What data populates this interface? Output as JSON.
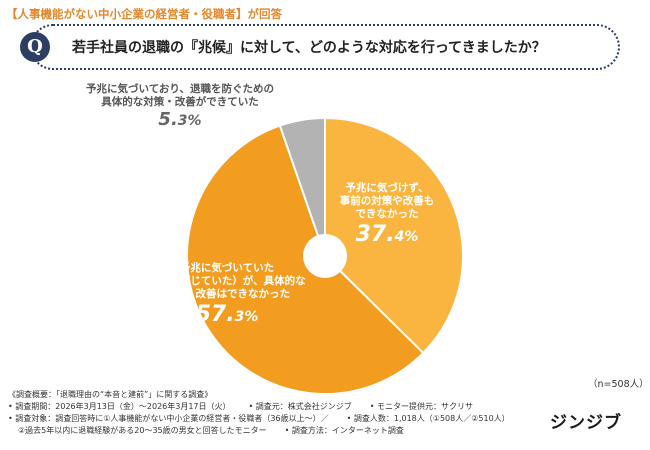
{
  "header": {
    "target_label": "【人事機能がない中小企業の経営者・役職者】が回答",
    "question_badge": "Q",
    "question": "若手社員の退職の『兆候』に対して、どのような対応を行ってきましたか？"
  },
  "chart_data": {
    "type": "pie",
    "title": "若手社員の退職の『兆候』に対して、どのような対応を行ってきましたか？",
    "donut_hole": true,
    "start": "top, clockwise",
    "slices": [
      {
        "label": "予兆に気づけず、事前の対策や改善もできなかった",
        "label_lines": [
          "予兆に気づけず、",
          "事前の対策や改善も",
          "できなかった"
        ],
        "value": 37.4,
        "value_main": "37.",
        "value_small": "4%",
        "color": "#f9b53f"
      },
      {
        "label": "予兆に気づいていた（薄々感じていた）が、具体的な対策・改善はできなかった",
        "label_lines": [
          "予兆に気づいていた",
          "（薄々感じていた）が、具体的な",
          "対策・改善はできなかった"
        ],
        "value": 57.3,
        "value_main": "57.",
        "value_small": "3%",
        "color": "#f29d1f"
      },
      {
        "label": "予兆に気づいており、退職を防ぐための具体的な対策・改善ができていた",
        "label_lines": [
          "予兆に気づいており、退職を防ぐための",
          "具体的な対策・改善ができていた"
        ],
        "value": 5.3,
        "value_main": "5.",
        "value_small": "3%",
        "color": "#b3b3b3"
      }
    ],
    "n_label": "（n=508人）"
  },
  "footer": {
    "line1": "《調査概要：「退職理由の“本音と建前”」に関する調査》",
    "period": "• 調査期間：2026年3月13日（金）～2026年3月17日（火）",
    "organizer": "• 調査元：株式会社ジンジブ",
    "monitor": "• モニター提供元：サクリサ",
    "subjects": "• 調査対象：調査回答時に①人事機能がない中小企業の経営者・役職者（36歳以上～）／",
    "count": "• 調査人数：1,018人（①508人／②510人）",
    "subjects2": "②過去5年以内に退職経験がある20～35歳の男女と回答したモニター",
    "method": "• 調査方法：インターネット調査"
  },
  "brand": {
    "logo_text": "ジンジブ"
  }
}
